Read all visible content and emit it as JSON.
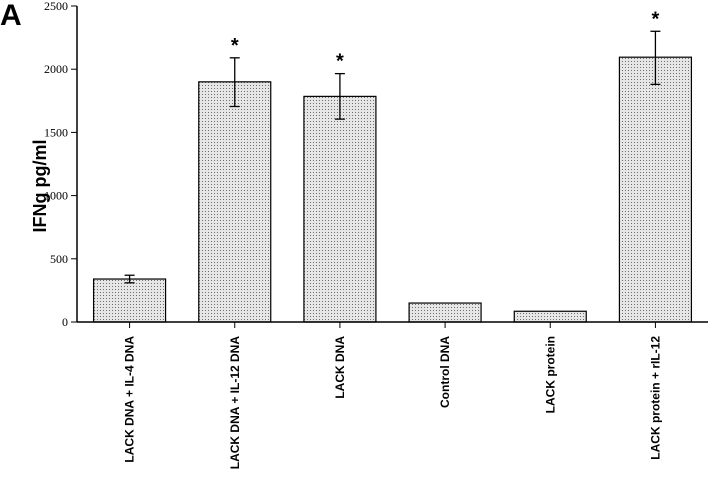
{
  "panel_label": "A",
  "chart_data": {
    "type": "bar",
    "title": "",
    "xlabel": "",
    "ylabel": "IFNg pg/ml",
    "ylim": [
      0,
      2500
    ],
    "yticks": [
      0,
      500,
      1000,
      1500,
      2000,
      2500
    ],
    "categories": [
      "LACK DNA + IL-4 DNA",
      "LACK DNA + IL-12 DNA",
      "LACK DNA",
      "Control DNA",
      "LACK protein",
      "LACK protein + rIL-12"
    ],
    "values": [
      340,
      1900,
      1785,
      150,
      85,
      2095
    ],
    "error_upper": [
      370,
      2090,
      1965,
      150,
      85,
      2300
    ],
    "error_lower": [
      310,
      1705,
      1605,
      150,
      85,
      1880
    ],
    "significance": [
      "",
      "*",
      "*",
      "",
      "",
      "*"
    ],
    "grid": false,
    "bar_fill": "dotted-gray",
    "colors": {
      "bar_fill": "#e6e6e6",
      "dot": "#6e6e6e",
      "stroke": "#000000"
    }
  }
}
